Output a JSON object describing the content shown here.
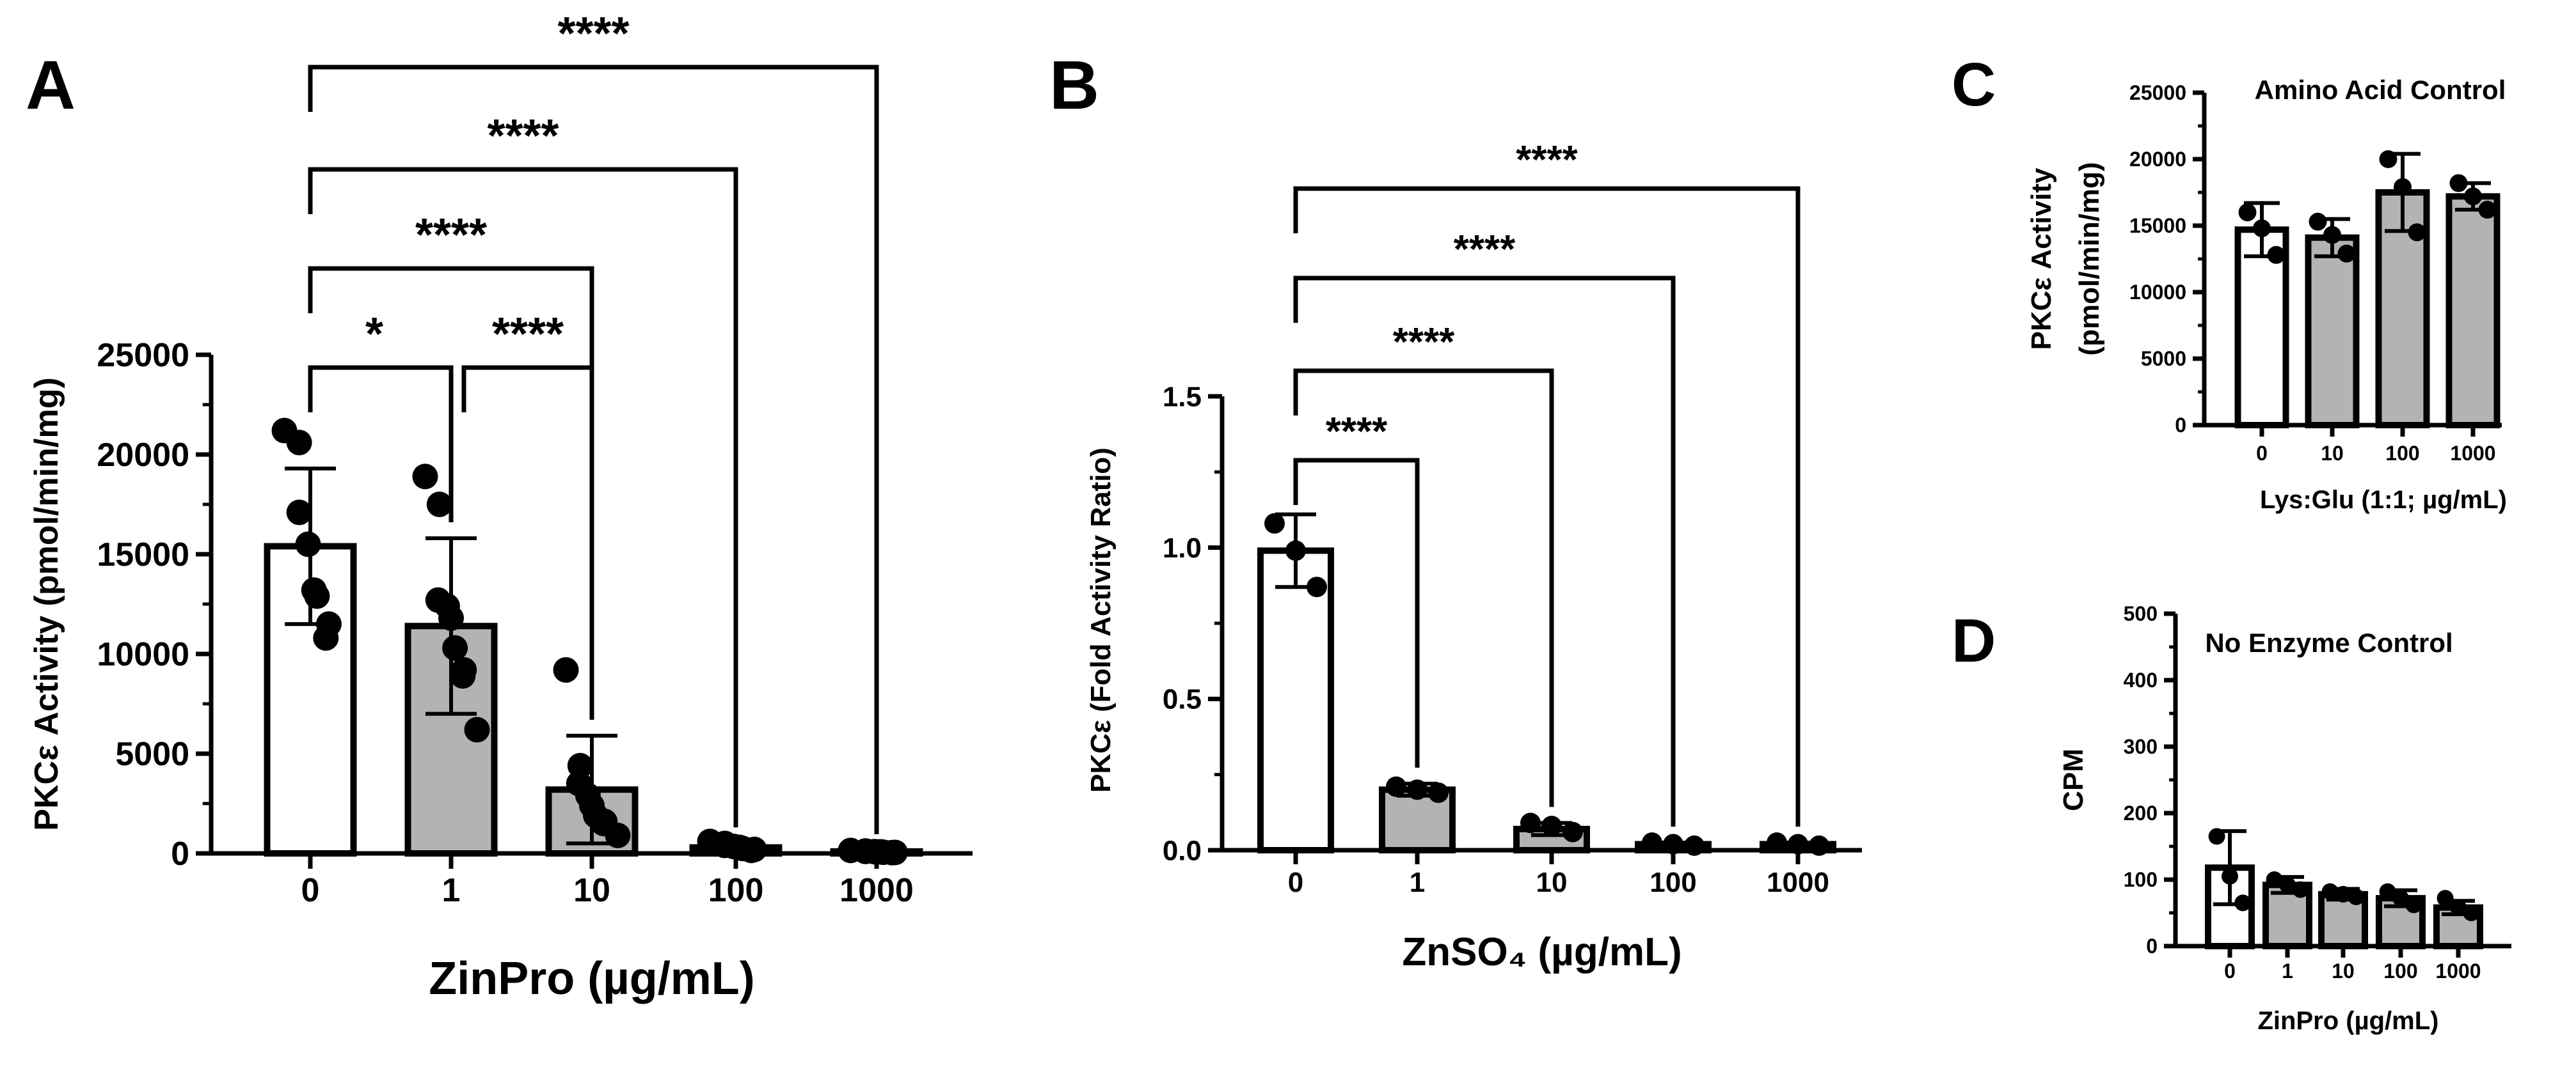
{
  "chart_data": [
    {
      "panel": "A",
      "type": "bar",
      "title": "",
      "xlabel": "ZinPro (µg/mL)",
      "ylabel": "PKCε Activity (pmol/min/mg)",
      "ylim": [
        0,
        25000
      ],
      "yticks": [
        0,
        5000,
        10000,
        15000,
        20000,
        25000
      ],
      "categories": [
        "0",
        "1",
        "10",
        "100",
        "1000"
      ],
      "values": [
        15400,
        11400,
        3200,
        300,
        100
      ],
      "sd": [
        3900,
        4400,
        2700,
        200,
        60
      ],
      "bar_fill": [
        "#ffffff",
        "#b3b3b3",
        "#b3b3b3",
        "#b3b3b3",
        "#b3b3b3"
      ],
      "points": [
        [
          21200,
          20600,
          17100,
          15500,
          13200,
          12900,
          11500,
          10800
        ],
        [
          18900,
          17500,
          12700,
          12400,
          11800,
          10300,
          9200,
          8900,
          6200
        ],
        [
          9200,
          4400,
          3500,
          2900,
          2400,
          1900,
          1600,
          1500,
          900
        ],
        [
          600,
          500,
          400,
          350,
          300,
          250,
          200,
          150
        ],
        [
          150,
          120,
          100,
          90,
          80,
          60,
          50,
          40
        ]
      ],
      "comparisons": [
        {
          "from": 0,
          "to": 4,
          "label": "****"
        },
        {
          "from": 0,
          "to": 3,
          "label": "****"
        },
        {
          "from": 0,
          "to": 2,
          "label": "****"
        },
        {
          "from": 0,
          "to": 1,
          "label": "*"
        },
        {
          "from": 1,
          "to": 2,
          "label": "****"
        }
      ]
    },
    {
      "panel": "B",
      "type": "bar",
      "title": "",
      "xlabel": "ZnSO₄ (µg/mL)",
      "ylabel": "PKCε (Fold Activity Ratio)",
      "ylim": [
        0,
        1.5
      ],
      "yticks": [
        0.0,
        0.5,
        1.0,
        1.5
      ],
      "tick_labels": [
        "0.0",
        "0.5",
        "1.0",
        "1.5"
      ],
      "categories": [
        "0",
        "1",
        "10",
        "100",
        "1000"
      ],
      "values": [
        0.99,
        0.2,
        0.07,
        0.02,
        0.02
      ],
      "sd": [
        0.12,
        0.02,
        0.02,
        0.005,
        0.005
      ],
      "bar_fill": [
        "#ffffff",
        "#b3b3b3",
        "#b3b3b3",
        "#b3b3b3",
        "#b3b3b3"
      ],
      "points": [
        [
          1.08,
          0.99,
          0.87
        ],
        [
          0.21,
          0.2,
          0.19
        ],
        [
          0.09,
          0.08,
          0.06
        ],
        [
          0.025,
          0.02,
          0.015
        ],
        [
          0.025,
          0.02,
          0.015
        ]
      ],
      "comparisons": [
        {
          "from": 0,
          "to": 4,
          "label": "****"
        },
        {
          "from": 0,
          "to": 3,
          "label": "****"
        },
        {
          "from": 0,
          "to": 2,
          "label": "****"
        },
        {
          "from": 0,
          "to": 1,
          "label": "****"
        }
      ]
    },
    {
      "panel": "C",
      "type": "bar",
      "title": "Amino Acid Control",
      "xlabel": "Lys:Glu (1:1; µg/mL)",
      "ylabel": "PKCε Activity",
      "ylabel2": "(pmol/min/mg)",
      "ylim": [
        0,
        25000
      ],
      "yticks": [
        0,
        5000,
        10000,
        15000,
        20000,
        25000
      ],
      "categories": [
        "0",
        "10",
        "100",
        "1000"
      ],
      "values": [
        14700,
        14100,
        17500,
        17200
      ],
      "sd": [
        2000,
        1400,
        2900,
        1000
      ],
      "bar_fill": [
        "#ffffff",
        "#b3b3b3",
        "#b3b3b3",
        "#b3b3b3"
      ],
      "points": [
        [
          16000,
          14800,
          12800
        ],
        [
          15300,
          14300,
          12900
        ],
        [
          20000,
          17900,
          14500
        ],
        [
          18200,
          17200,
          16200
        ]
      ],
      "comparisons": []
    },
    {
      "panel": "D",
      "type": "bar",
      "title": "No Enzyme Control",
      "xlabel": "ZinPro (µg/mL)",
      "ylabel": "CPM",
      "ylim": [
        0,
        500
      ],
      "yticks": [
        0,
        100,
        200,
        300,
        400,
        500
      ],
      "categories": [
        "0",
        "1",
        "10",
        "100",
        "1000"
      ],
      "values": [
        118,
        92,
        78,
        72,
        58
      ],
      "sd": [
        55,
        12,
        8,
        12,
        10
      ],
      "bar_fill": [
        "#ffffff",
        "#b3b3b3",
        "#b3b3b3",
        "#b3b3b3",
        "#b3b3b3"
      ],
      "points": [
        [
          165,
          105,
          65
        ],
        [
          100,
          92,
          85
        ],
        [
          82,
          78,
          74
        ],
        [
          82,
          72,
          62
        ],
        [
          72,
          58,
          50
        ]
      ],
      "comparisons": []
    }
  ]
}
